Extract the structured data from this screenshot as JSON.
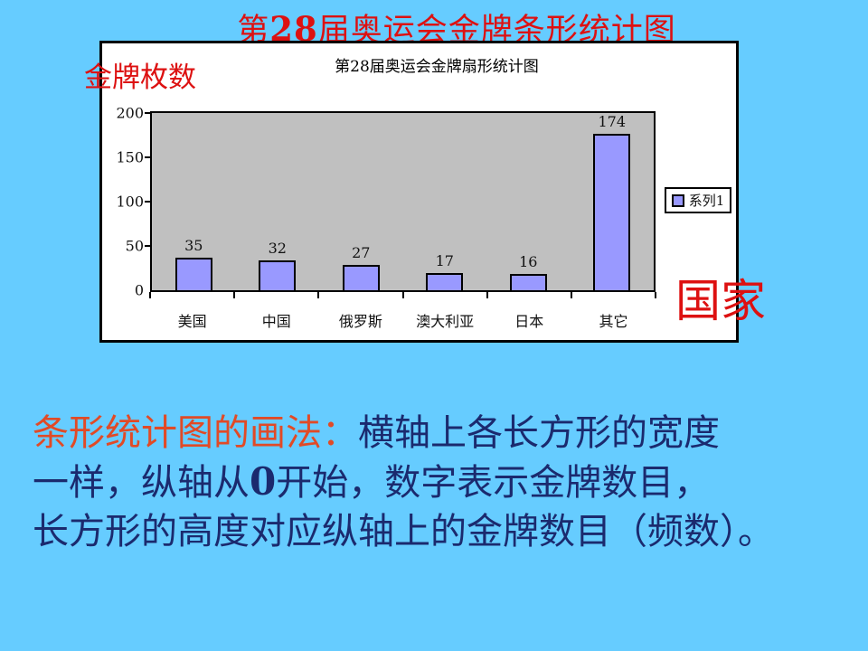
{
  "slide": {
    "background_color": "#66ccff",
    "title": {
      "pre": "第",
      "num": "28",
      "post": "届奥运会金牌条形统计图",
      "color": "#dd1111"
    },
    "y_axis_caption": "金牌枚数",
    "x_axis_caption": "国家"
  },
  "chart_data": {
    "type": "bar",
    "title": "第28届奥运会金牌扇形统计图",
    "categories": [
      "美国",
      "中国",
      "俄罗斯",
      "澳大利亚",
      "日本",
      "其它"
    ],
    "values": [
      35,
      32,
      27,
      17,
      16,
      174
    ],
    "series": [
      {
        "name": "系列1",
        "values": [
          35,
          32,
          27,
          17,
          16,
          174
        ]
      }
    ],
    "legend_position": "right",
    "data_labels": true,
    "ylim": [
      0,
      200
    ],
    "yticks": [
      0,
      50,
      100,
      150,
      200
    ],
    "bar_color": "#9999ff",
    "plot_background": "#c0c0c0",
    "grid": false
  },
  "paragraph": {
    "highlight": "条形统计图的画法：",
    "highlight_color": "#e14a26",
    "line1_rest": "横轴上各长方形的宽度",
    "line2_pre": "一样，纵轴从",
    "line2_bold": "0",
    "line2_post": "开始，数字表示金牌数目，",
    "line3": "长方形的高度对应纵轴上的金牌数目（频数）。",
    "body_color": "#1b2a6e"
  }
}
